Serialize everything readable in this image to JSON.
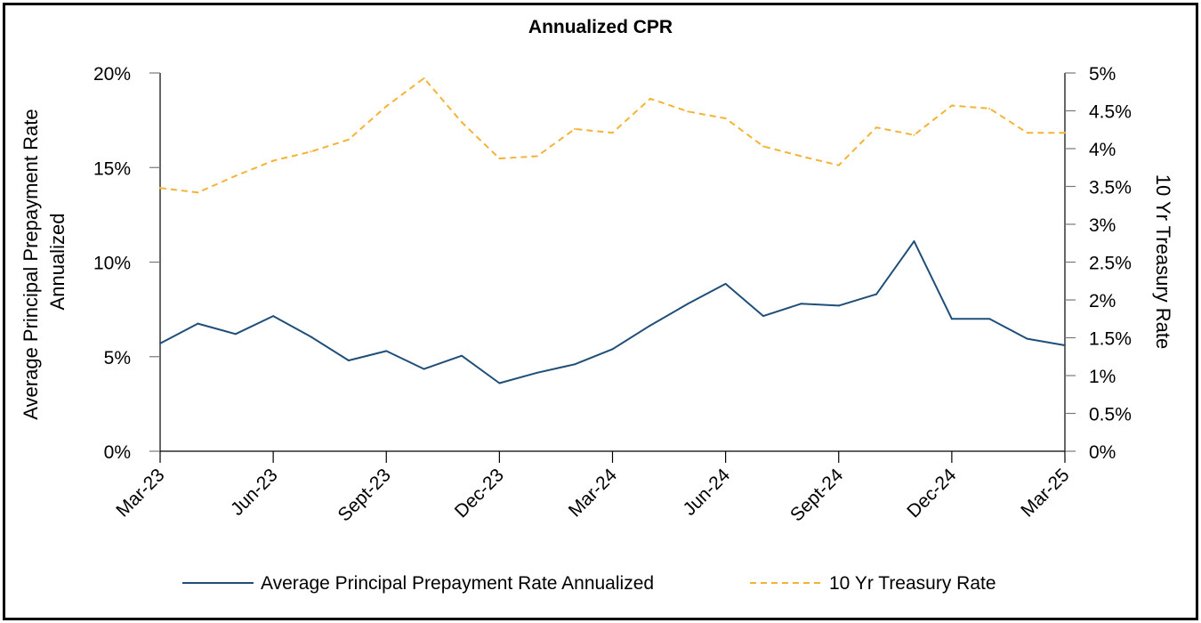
{
  "chart_data": {
    "type": "line",
    "title": "Annualized CPR",
    "title_color": "#1F4E79",
    "x": [
      "Mar-23",
      "Apr-23",
      "May-23",
      "Jun-23",
      "Jul-23",
      "Aug-23",
      "Sept-23",
      "Oct-23",
      "Nov-23",
      "Dec-23",
      "Jan-24",
      "Feb-24",
      "Mar-24",
      "Apr-24",
      "May-24",
      "Jun-24",
      "Jul-24",
      "Aug-24",
      "Sept-24",
      "Oct-24",
      "Nov-24",
      "Dec-24",
      "Jan-25",
      "Feb-25",
      "Mar-25"
    ],
    "x_tick_labels": [
      "Mar-23",
      "Jun-23",
      "Sept-23",
      "Dec-23",
      "Mar-24",
      "Jun-24",
      "Sept-24",
      "Dec-24",
      "Mar-25"
    ],
    "y_left": {
      "label_lines": [
        "Average Principal Prepayment Rate",
        "Annualized"
      ],
      "lim": [
        0,
        20
      ],
      "ticks": [
        0,
        5,
        10,
        15,
        20
      ],
      "tick_labels": [
        "0%",
        "5%",
        "10%",
        "15%",
        "20%"
      ]
    },
    "y_right": {
      "label": "10 Yr Treasury Rate",
      "lim": [
        0,
        5
      ],
      "ticks": [
        0,
        0.5,
        1,
        1.5,
        2,
        2.5,
        3,
        3.5,
        4,
        4.5,
        5
      ],
      "tick_labels": [
        "0%",
        "0.5%",
        "1%",
        "1.5%",
        "2%",
        "2.5%",
        "3%",
        "3.5%",
        "4%",
        "4.5%",
        "5%"
      ]
    },
    "series": [
      {
        "name": "Average Principal Prepayment Rate Annualized",
        "axis": "left",
        "color": "#1F4E79",
        "style": "solid",
        "values": [
          5.7,
          6.75,
          6.2,
          7.15,
          6.05,
          4.8,
          5.3,
          4.35,
          5.05,
          3.6,
          4.15,
          4.6,
          5.4,
          6.65,
          7.8,
          8.85,
          7.15,
          7.8,
          7.7,
          8.3,
          11.1,
          7.0,
          7.0,
          5.95,
          5.6
        ]
      },
      {
        "name": "10 Yr Treasury Rate",
        "axis": "right",
        "color": "#F5B335",
        "style": "dashed",
        "values": [
          3.48,
          3.42,
          3.64,
          3.84,
          3.96,
          4.12,
          4.56,
          4.93,
          4.35,
          3.87,
          3.9,
          4.26,
          4.21,
          4.66,
          4.49,
          4.4,
          4.03,
          3.9,
          3.78,
          4.28,
          4.18,
          4.57,
          4.53,
          4.21,
          4.21
        ]
      }
    ],
    "legend_placement": "bottom",
    "grid": false
  }
}
